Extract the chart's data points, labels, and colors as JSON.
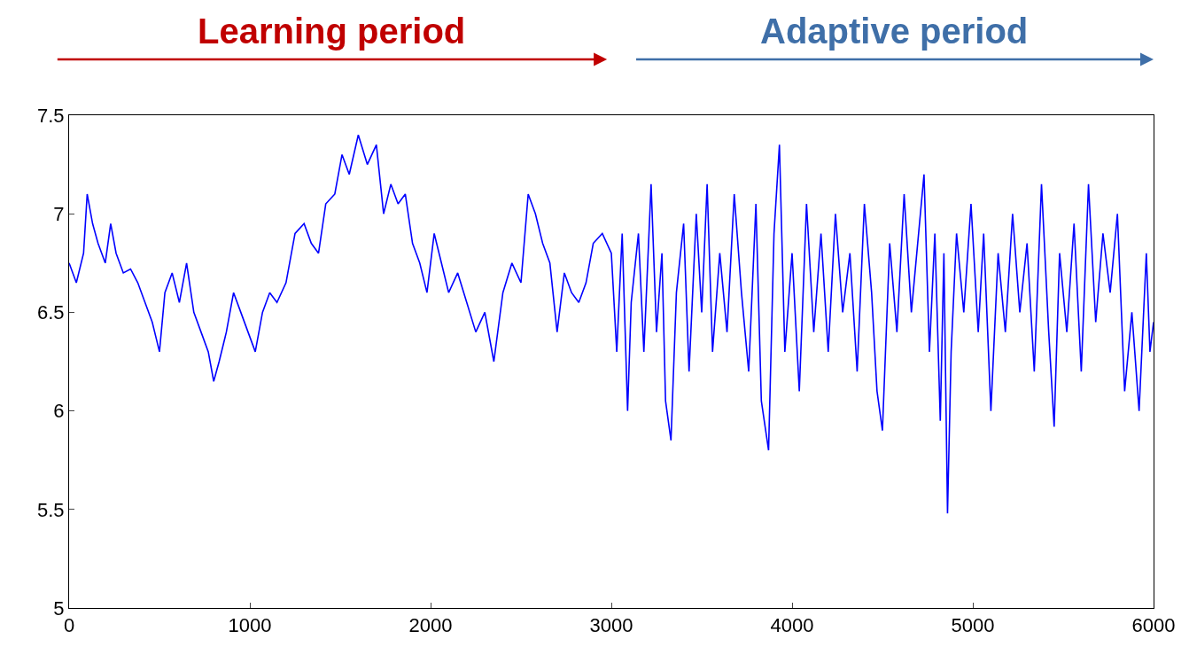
{
  "chart_data": {
    "type": "line",
    "color": "#0000ff",
    "x": [
      0,
      40,
      80,
      100,
      130,
      160,
      200,
      230,
      260,
      300,
      340,
      380,
      420,
      460,
      500,
      530,
      570,
      610,
      650,
      690,
      730,
      770,
      800,
      830,
      870,
      910,
      950,
      990,
      1030,
      1070,
      1110,
      1150,
      1200,
      1250,
      1300,
      1340,
      1380,
      1420,
      1470,
      1510,
      1550,
      1600,
      1650,
      1700,
      1740,
      1780,
      1820,
      1860,
      1900,
      1940,
      1980,
      2020,
      2060,
      2100,
      2150,
      2200,
      2250,
      2300,
      2350,
      2400,
      2450,
      2500,
      2540,
      2580,
      2620,
      2660,
      2700,
      2740,
      2780,
      2820,
      2860,
      2900,
      2950,
      3000,
      3030,
      3060,
      3090,
      3110,
      3150,
      3180,
      3220,
      3250,
      3280,
      3300,
      3330,
      3360,
      3400,
      3430,
      3470,
      3500,
      3530,
      3560,
      3600,
      3640,
      3680,
      3720,
      3760,
      3800,
      3830,
      3870,
      3900,
      3930,
      3960,
      4000,
      4040,
      4080,
      4120,
      4160,
      4200,
      4240,
      4280,
      4320,
      4360,
      4400,
      4440,
      4470,
      4500,
      4540,
      4580,
      4620,
      4660,
      4700,
      4730,
      4760,
      4790,
      4820,
      4840,
      4860,
      4880,
      4910,
      4950,
      4990,
      5030,
      5060,
      5100,
      5140,
      5180,
      5220,
      5260,
      5300,
      5340,
      5380,
      5420,
      5450,
      5480,
      5520,
      5560,
      5600,
      5640,
      5680,
      5720,
      5760,
      5800,
      5840,
      5880,
      5920,
      5960,
      5980,
      6000
    ],
    "values": [
      6.75,
      6.65,
      6.8,
      7.1,
      6.95,
      6.85,
      6.75,
      6.95,
      6.8,
      6.7,
      6.72,
      6.65,
      6.55,
      6.45,
      6.3,
      6.6,
      6.7,
      6.55,
      6.75,
      6.5,
      6.4,
      6.3,
      6.15,
      6.25,
      6.4,
      6.6,
      6.5,
      6.4,
      6.3,
      6.5,
      6.6,
      6.55,
      6.65,
      6.9,
      6.95,
      6.85,
      6.8,
      7.05,
      7.1,
      7.3,
      7.2,
      7.4,
      7.25,
      7.35,
      7.0,
      7.15,
      7.05,
      7.1,
      6.85,
      6.75,
      6.6,
      6.9,
      6.75,
      6.6,
      6.7,
      6.55,
      6.4,
      6.5,
      6.25,
      6.6,
      6.75,
      6.65,
      7.1,
      7.0,
      6.85,
      6.75,
      6.4,
      6.7,
      6.6,
      6.55,
      6.65,
      6.85,
      6.9,
      6.8,
      6.3,
      6.9,
      6.0,
      6.55,
      6.9,
      6.3,
      7.15,
      6.4,
      6.8,
      6.05,
      5.85,
      6.6,
      6.95,
      6.2,
      7.0,
      6.5,
      7.15,
      6.3,
      6.8,
      6.4,
      7.1,
      6.6,
      6.2,
      7.05,
      6.05,
      5.8,
      6.9,
      7.35,
      6.3,
      6.8,
      6.1,
      7.05,
      6.4,
      6.9,
      6.3,
      7.0,
      6.5,
      6.8,
      6.2,
      7.05,
      6.6,
      6.1,
      5.9,
      6.85,
      6.4,
      7.1,
      6.5,
      6.9,
      7.2,
      6.3,
      6.9,
      5.95,
      6.8,
      5.48,
      6.3,
      6.9,
      6.5,
      7.05,
      6.4,
      6.9,
      6.0,
      6.8,
      6.4,
      7.0,
      6.5,
      6.85,
      6.2,
      7.15,
      6.4,
      5.92,
      6.8,
      6.4,
      6.95,
      6.2,
      7.15,
      6.45,
      6.9,
      6.6,
      7.0,
      6.1,
      6.5,
      6.0,
      6.8,
      6.3,
      6.45
    ],
    "xlim": [
      0,
      6000
    ],
    "xticks": [
      0,
      1000,
      2000,
      3000,
      4000,
      5000,
      6000
    ],
    "ylim": [
      5,
      7.5
    ],
    "yticks": [
      5,
      5.5,
      6,
      6.5,
      7,
      7.5
    ],
    "marker": "none",
    "line_style": "solid",
    "annotations": [
      "Learning period",
      "Adaptive period"
    ]
  }
}
